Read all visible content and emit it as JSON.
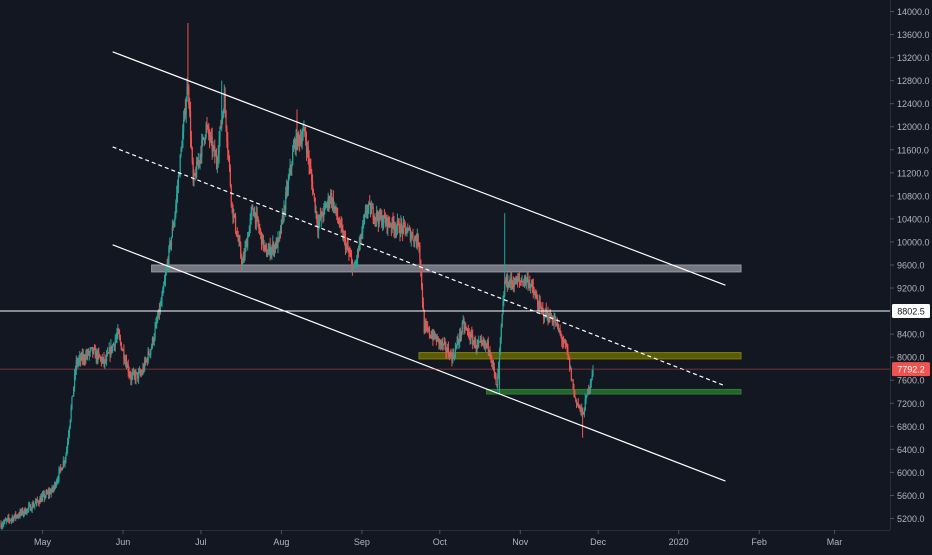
{
  "chart_data": {
    "type": "candlestick",
    "symbol_quote": "USD",
    "colors": {
      "background": "#131722",
      "up": "#26a69a",
      "down": "#ef5350",
      "axis_text": "#b2b5be",
      "trendline": "#ffffff",
      "resistance_zone": "#9598a1",
      "mid_zone": "#808000",
      "support_zone": "#2e7d32",
      "current_price": "#ef5350",
      "level_line": "#ffffff"
    },
    "x_axis": {
      "range": [
        "2019-04-15",
        "2020-03-22"
      ],
      "tick_labels": [
        {
          "date": "2019-05-01",
          "label": "May"
        },
        {
          "date": "2019-06-01",
          "label": "Jun"
        },
        {
          "date": "2019-07-01",
          "label": "Jul"
        },
        {
          "date": "2019-08-01",
          "label": "Aug"
        },
        {
          "date": "2019-09-01",
          "label": "Sep"
        },
        {
          "date": "2019-10-01",
          "label": "Oct"
        },
        {
          "date": "2019-11-01",
          "label": "Nov"
        },
        {
          "date": "2019-12-01",
          "label": "Dec"
        },
        {
          "date": "2020-01-01",
          "label": "2020"
        },
        {
          "date": "2020-02-01",
          "label": "Feb"
        },
        {
          "date": "2020-03-01",
          "label": "Mar"
        }
      ]
    },
    "y_axis": {
      "range": [
        5000,
        14200
      ],
      "tick_labels": [
        "5200.0",
        "5600.0",
        "6000.0",
        "6400.0",
        "6800.0",
        "7200.0",
        "7600.0",
        "8000.0",
        "8400.0",
        "9200.0",
        "9600.0",
        "10000.0",
        "10400.0",
        "10800.0",
        "11200.0",
        "11600.0",
        "12000.0",
        "12400.0",
        "12800.0",
        "13200.0",
        "13600.0",
        "14000.0"
      ]
    },
    "price_labels": [
      {
        "label": "8802.5",
        "value": 8802.5,
        "style": "white"
      },
      {
        "label": "7792.2",
        "value": 7792.2,
        "style": "red"
      }
    ],
    "close_anchors": [
      [
        "2019-04-15",
        5100
      ],
      [
        "2019-04-25",
        5350
      ],
      [
        "2019-05-05",
        5700
      ],
      [
        "2019-05-10",
        6300
      ],
      [
        "2019-05-14",
        7900
      ],
      [
        "2019-05-20",
        8100
      ],
      [
        "2019-05-25",
        7900
      ],
      [
        "2019-05-30",
        8400
      ],
      [
        "2019-06-04",
        7650
      ],
      [
        "2019-06-08",
        7700
      ],
      [
        "2019-06-12",
        8200
      ],
      [
        "2019-06-16",
        9000
      ],
      [
        "2019-06-21",
        10500
      ],
      [
        "2019-06-26",
        12800
      ],
      [
        "2019-06-28",
        11000
      ],
      [
        "2019-07-03",
        12000
      ],
      [
        "2019-07-07",
        11400
      ],
      [
        "2019-07-10",
        12500
      ],
      [
        "2019-07-13",
        10600
      ],
      [
        "2019-07-17",
        9600
      ],
      [
        "2019-07-21",
        10600
      ],
      [
        "2019-07-26",
        9800
      ],
      [
        "2019-07-31",
        10000
      ],
      [
        "2019-08-06",
        11700
      ],
      [
        "2019-08-10",
        11900
      ],
      [
        "2019-08-15",
        10300
      ],
      [
        "2019-08-20",
        10800
      ],
      [
        "2019-08-24",
        10200
      ],
      [
        "2019-08-29",
        9500
      ],
      [
        "2019-09-03",
        10600
      ],
      [
        "2019-09-08",
        10400
      ],
      [
        "2019-09-13",
        10300
      ],
      [
        "2019-09-18",
        10200
      ],
      [
        "2019-09-23",
        10000
      ],
      [
        "2019-09-25",
        8500
      ],
      [
        "2019-09-30",
        8300
      ],
      [
        "2019-10-06",
        8000
      ],
      [
        "2019-10-10",
        8550
      ],
      [
        "2019-10-15",
        8200
      ],
      [
        "2019-10-20",
        8200
      ],
      [
        "2019-10-23",
        7450
      ],
      [
        "2019-10-26",
        9300
      ],
      [
        "2019-10-30",
        9300
      ],
      [
        "2019-11-04",
        9350
      ],
      [
        "2019-11-09",
        8800
      ],
      [
        "2019-11-14",
        8650
      ],
      [
        "2019-11-19",
        8100
      ],
      [
        "2019-11-22",
        7300
      ],
      [
        "2019-11-25",
        7000
      ],
      [
        "2019-11-29",
        7792.2
      ]
    ],
    "trendlines": [
      {
        "name": "upper-channel",
        "from": [
          "2019-05-28",
          13300
        ],
        "to": [
          "2020-01-19",
          9250
        ],
        "style": "solid"
      },
      {
        "name": "mid-channel",
        "from": [
          "2019-05-28",
          11650
        ],
        "to": [
          "2020-01-19",
          7500
        ],
        "style": "dashed"
      },
      {
        "name": "lower-channel",
        "from": [
          "2019-05-28",
          9950
        ],
        "to": [
          "2020-01-19",
          5850
        ],
        "style": "solid"
      }
    ],
    "zones": [
      {
        "name": "resistance-zone",
        "from": "2019-06-12",
        "to": "2020-01-25",
        "low": 9480,
        "high": 9600
      },
      {
        "name": "mid-zone",
        "from": "2019-09-23",
        "to": "2020-01-25",
        "low": 7970,
        "high": 8080
      },
      {
        "name": "support-zone",
        "from": "2019-10-19",
        "to": "2020-01-25",
        "low": 7360,
        "high": 7440
      }
    ]
  }
}
